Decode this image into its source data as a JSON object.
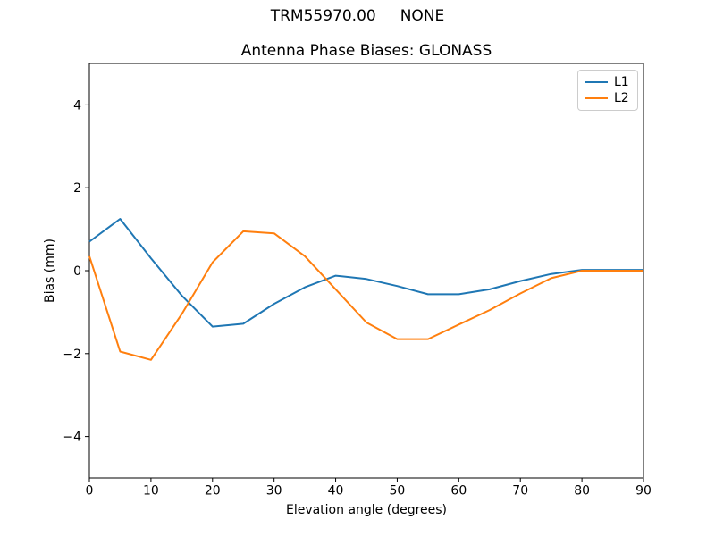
{
  "figure": {
    "suptitle": "TRM55970.00     NONE"
  },
  "chart_data": {
    "type": "line",
    "title": "Antenna Phase Biases: GLONASS",
    "xlabel": "Elevation angle (degrees)",
    "ylabel": "Bias (mm)",
    "xlim": [
      0,
      90
    ],
    "ylim": [
      -5,
      5
    ],
    "xticks": [
      0,
      10,
      20,
      30,
      40,
      50,
      60,
      70,
      80,
      90
    ],
    "xticklabels": [
      "0",
      "10",
      "20",
      "30",
      "40",
      "50",
      "60",
      "70",
      "80",
      "90"
    ],
    "yticks": [
      -4,
      -2,
      0,
      2,
      4
    ],
    "yticklabels": [
      "−4",
      "−2",
      "0",
      "2",
      "4"
    ],
    "grid": false,
    "legend": {
      "position": "upper right"
    },
    "x": [
      0,
      5,
      10,
      15,
      20,
      25,
      30,
      35,
      40,
      45,
      50,
      55,
      60,
      65,
      70,
      75,
      80,
      85,
      90
    ],
    "series": [
      {
        "name": "L1",
        "color": "#1f77b4",
        "values": [
          0.7,
          1.25,
          0.3,
          -0.6,
          -1.35,
          -1.28,
          -0.8,
          -0.4,
          -0.12,
          -0.2,
          -0.37,
          -0.57,
          -0.57,
          -0.45,
          -0.25,
          -0.08,
          0.02,
          0.02,
          0.02
        ]
      },
      {
        "name": "L2",
        "color": "#ff7f0e",
        "values": [
          0.35,
          -1.95,
          -2.15,
          -1.05,
          0.2,
          0.95,
          0.9,
          0.35,
          -0.45,
          -1.25,
          -1.65,
          -1.65,
          -1.3,
          -0.95,
          -0.55,
          -0.18,
          0.0,
          0.0,
          0.0
        ]
      }
    ]
  },
  "colors": {
    "spine": "#000000",
    "legend_border": "#cccccc",
    "background": "#ffffff"
  }
}
